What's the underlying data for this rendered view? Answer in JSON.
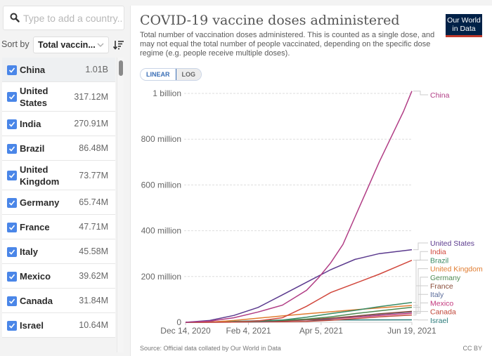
{
  "sidebar": {
    "search_placeholder": "Type to add a country...",
    "sort_label": "Sort by",
    "sort_value": "Total vaccin...",
    "countries": [
      {
        "name": "China",
        "value": "1.01B",
        "checked": true
      },
      {
        "name": "United States",
        "value": "317.12M",
        "checked": true
      },
      {
        "name": "India",
        "value": "270.91M",
        "checked": true
      },
      {
        "name": "Brazil",
        "value": "86.48M",
        "checked": true
      },
      {
        "name": "United Kingdom",
        "value": "73.77M",
        "checked": true
      },
      {
        "name": "Germany",
        "value": "65.74M",
        "checked": true
      },
      {
        "name": "France",
        "value": "47.71M",
        "checked": true
      },
      {
        "name": "Italy",
        "value": "45.58M",
        "checked": true
      },
      {
        "name": "Mexico",
        "value": "39.62M",
        "checked": true
      },
      {
        "name": "Canada",
        "value": "31.84M",
        "checked": true
      },
      {
        "name": "Israel",
        "value": "10.64M",
        "checked": true
      }
    ]
  },
  "header": {
    "title": "COVID-19 vaccine doses administered",
    "subtitle": "Total number of vaccination doses administered. This is counted as a single dose, and may not equal the total number of people vaccinated, depending on the specific dose regime (e.g. people receive multiple doses).",
    "logo_line1": "Our World",
    "logo_line2": "in Data",
    "scale_linear": "LINEAR",
    "scale_log": "LOG"
  },
  "footer": {
    "source": "Source: Official data collated by Our World in Data",
    "license": "CC BY"
  },
  "chart_data": {
    "type": "line",
    "title": "COVID-19 vaccine doses administered",
    "xlabel": "",
    "ylabel": "",
    "x_ticks": [
      "Dec 14, 2020",
      "Feb 4, 2021",
      "Apr 5, 2021",
      "Jun 19, 2021"
    ],
    "x_range_days": [
      0,
      187
    ],
    "x_tick_days": [
      0,
      52,
      112,
      187
    ],
    "y_ticks": [
      {
        "value": 0,
        "label": "0"
      },
      {
        "value": 200000000,
        "label": "200 million"
      },
      {
        "value": 400000000,
        "label": "400 million"
      },
      {
        "value": 600000000,
        "label": "600 million"
      },
      {
        "value": 800000000,
        "label": "800 million"
      },
      {
        "value": 1000000000,
        "label": "1 billion"
      }
    ],
    "ylim": [
      0,
      1000000000
    ],
    "grid": true,
    "legend": "right",
    "series": [
      {
        "name": "China",
        "color": "#b13d85",
        "x": [
          0,
          20,
          40,
          60,
          80,
          100,
          110,
          120,
          130,
          140,
          150,
          160,
          170,
          180,
          187
        ],
        "values": [
          0,
          5000000,
          20000000,
          45000000,
          75000000,
          140000000,
          195000000,
          260000000,
          340000000,
          460000000,
          580000000,
          700000000,
          810000000,
          920000000,
          1010000000
        ]
      },
      {
        "name": "United States",
        "color": "#5b3a8e",
        "x": [
          0,
          20,
          40,
          60,
          80,
          100,
          120,
          140,
          160,
          187
        ],
        "values": [
          0,
          8000000,
          30000000,
          65000000,
          120000000,
          175000000,
          230000000,
          275000000,
          300000000,
          317120000
        ]
      },
      {
        "name": "India",
        "color": "#d1473c",
        "x": [
          0,
          40,
          60,
          80,
          100,
          110,
          120,
          140,
          160,
          187
        ],
        "values": [
          0,
          1000000,
          6000000,
          20000000,
          70000000,
          100000000,
          130000000,
          170000000,
          210000000,
          270910000
        ]
      },
      {
        "name": "Brazil",
        "color": "#3a8a63",
        "x": [
          0,
          40,
          60,
          80,
          100,
          120,
          140,
          160,
          187
        ],
        "values": [
          0,
          1000000,
          4000000,
          10000000,
          22000000,
          38000000,
          52000000,
          68000000,
          86480000
        ]
      },
      {
        "name": "United Kingdom",
        "color": "#e07c30",
        "x": [
          0,
          20,
          40,
          60,
          80,
          100,
          120,
          140,
          160,
          187
        ],
        "values": [
          0,
          1000000,
          8000000,
          18000000,
          28000000,
          37000000,
          46000000,
          55000000,
          63000000,
          73770000
        ]
      },
      {
        "name": "Germany",
        "color": "#4f8a52",
        "x": [
          0,
          40,
          60,
          80,
          100,
          120,
          140,
          160,
          187
        ],
        "values": [
          0,
          2000000,
          5000000,
          9000000,
          14000000,
          24000000,
          38000000,
          50000000,
          65740000
        ]
      },
      {
        "name": "France",
        "color": "#8a4d3a",
        "x": [
          0,
          40,
          60,
          80,
          100,
          120,
          140,
          160,
          187
        ],
        "values": [
          0,
          1500000,
          4000000,
          7000000,
          11000000,
          18000000,
          27000000,
          37000000,
          47710000
        ]
      },
      {
        "name": "Italy",
        "color": "#5a6b9a",
        "x": [
          0,
          40,
          60,
          80,
          100,
          120,
          140,
          160,
          187
        ],
        "values": [
          0,
          1500000,
          4000000,
          7000000,
          11000000,
          17000000,
          26000000,
          35000000,
          45580000
        ]
      },
      {
        "name": "Mexico",
        "color": "#c2357b",
        "x": [
          0,
          40,
          60,
          80,
          100,
          120,
          140,
          160,
          187
        ],
        "values": [
          0,
          700000,
          2500000,
          6000000,
          10000000,
          15000000,
          22000000,
          30000000,
          39620000
        ]
      },
      {
        "name": "Canada",
        "color": "#c0473a",
        "x": [
          0,
          40,
          60,
          80,
          100,
          120,
          140,
          160,
          187
        ],
        "values": [
          0,
          800000,
          1500000,
          2500000,
          4000000,
          9000000,
          16000000,
          24000000,
          31840000
        ]
      },
      {
        "name": "Israel",
        "color": "#2a7a7a",
        "x": [
          0,
          20,
          40,
          60,
          80,
          100,
          187
        ],
        "values": [
          0,
          1500000,
          4000000,
          7000000,
          9500000,
          10200000,
          10640000
        ]
      }
    ]
  }
}
